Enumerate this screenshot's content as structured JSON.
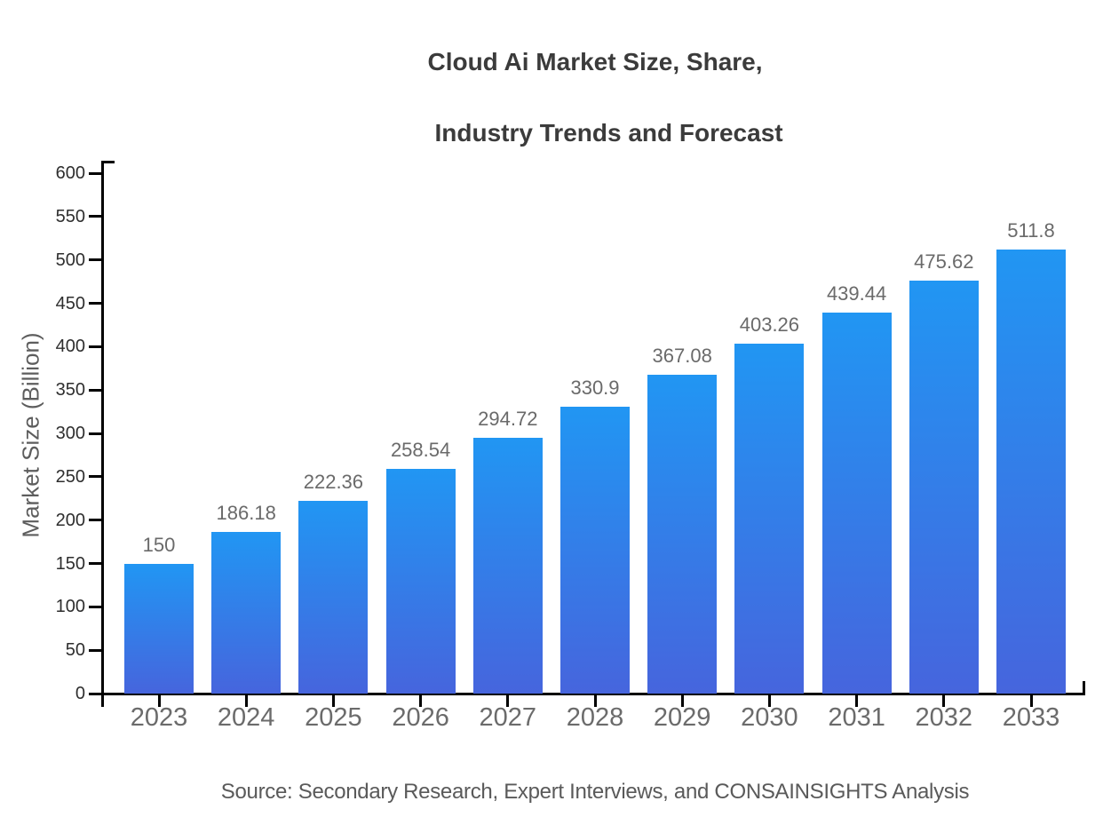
{
  "page": {
    "title_line1": "Cloud Ai Market Size, Share,",
    "title_line2": "Industry Trends and Forecast",
    "source_note": "Source: Secondary Research, Expert Interviews, and CONSAINSIGHTS Analysis"
  },
  "chart_data": {
    "type": "bar",
    "title": "Cloud Ai Market Size, Share, Industry Trends and Forecast",
    "categories": [
      "2023",
      "2024",
      "2025",
      "2026",
      "2027",
      "2028",
      "2029",
      "2030",
      "2031",
      "2032",
      "2033"
    ],
    "values": [
      150,
      186.18,
      222.36,
      258.54,
      294.72,
      330.9,
      367.08,
      403.26,
      439.44,
      475.62,
      511.8
    ],
    "value_labels": [
      "150",
      "186.18",
      "222.36",
      "258.54",
      "294.72",
      "330.9",
      "367.08",
      "403.26",
      "439.44",
      "475.62",
      "511.8"
    ],
    "xlabel": "",
    "ylabel": "Market Size (Billion)",
    "ylim": [
      0,
      600
    ],
    "yticks": [
      0,
      50,
      100,
      150,
      200,
      250,
      300,
      350,
      400,
      450,
      500,
      550,
      600
    ],
    "grid": false,
    "legend": "none",
    "colors": {
      "bar_gradient_top": "#2196f3",
      "bar_gradient_bottom": "#4665dd",
      "axis": "#000000",
      "title_text": "#3b3b3b",
      "ytick_text": "#2e2e2e",
      "xtick_text": "#6b6b6b",
      "value_label_text": "#6a6a6a",
      "axis_label_text": "#5d5d5d",
      "source_text": "#5a5a5a"
    }
  }
}
